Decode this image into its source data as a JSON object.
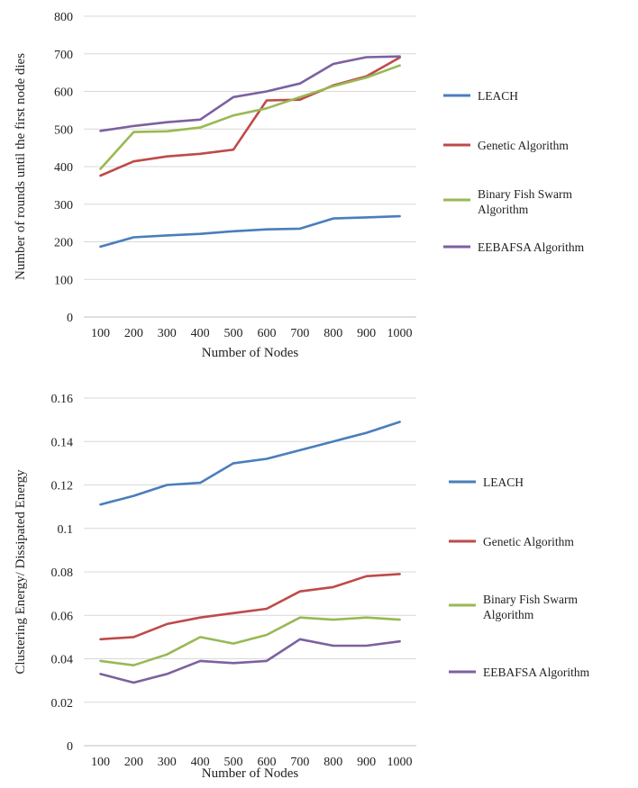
{
  "chart_data": [
    {
      "type": "line",
      "title": "",
      "xlabel": "Number of Nodes",
      "ylabel": "Number of rounds until the first node dies",
      "categories": [
        "100",
        "200",
        "300",
        "400",
        "500",
        "600",
        "700",
        "800",
        "900",
        "1000"
      ],
      "ylim": [
        0,
        800
      ],
      "yticks": [
        "0",
        "100",
        "200",
        "300",
        "400",
        "500",
        "600",
        "700",
        "800"
      ],
      "grid": true,
      "legend_position": "right",
      "series": [
        {
          "name": "LEACH",
          "color": "#4a7ebb",
          "values": [
            187,
            212,
            217,
            221,
            228,
            233,
            235,
            262,
            265,
            268
          ]
        },
        {
          "name": "Genetic Algorithm",
          "color": "#be4b48",
          "values": [
            376,
            414,
            427,
            434,
            445,
            576,
            578,
            616,
            640,
            690
          ]
        },
        {
          "name": "Binary Fish Swarm Algorithm",
          "color": "#98b954",
          "values": [
            394,
            492,
            494,
            504,
            536,
            555,
            585,
            614,
            637,
            669
          ]
        },
        {
          "name": "EEBAFSA Algorithm",
          "color": "#7d60a0",
          "values": [
            495,
            508,
            518,
            525,
            585,
            600,
            621,
            673,
            691,
            693
          ]
        }
      ]
    },
    {
      "type": "line",
      "title": "",
      "xlabel": "Number of Nodes",
      "ylabel": "Clustering Energy/ Dissipated Energy",
      "categories": [
        "100",
        "200",
        "300",
        "400",
        "500",
        "600",
        "700",
        "800",
        "900",
        "1000"
      ],
      "ylim": [
        0,
        0.16
      ],
      "yticks": [
        "0",
        "0.02",
        "0.04",
        "0.06",
        "0.08",
        "0.1",
        "0.12",
        "0.14",
        "0.16"
      ],
      "grid": true,
      "legend_position": "right",
      "series": [
        {
          "name": "LEACH",
          "color": "#4a7ebb",
          "values": [
            0.111,
            0.115,
            0.12,
            0.121,
            0.13,
            0.132,
            0.136,
            0.14,
            0.144,
            0.149
          ]
        },
        {
          "name": "Genetic Algorithm",
          "color": "#be4b48",
          "values": [
            0.049,
            0.05,
            0.056,
            0.059,
            0.061,
            0.063,
            0.071,
            0.073,
            0.078,
            0.079
          ]
        },
        {
          "name": "Binary Fish Swarm Algorithm",
          "color": "#98b954",
          "values": [
            0.039,
            0.037,
            0.042,
            0.05,
            0.047,
            0.051,
            0.059,
            0.058,
            0.059,
            0.058
          ]
        },
        {
          "name": "EEBAFSA Algorithm",
          "color": "#7d60a0",
          "values": [
            0.033,
            0.029,
            0.033,
            0.039,
            0.038,
            0.039,
            0.049,
            0.046,
            0.046,
            0.048
          ]
        }
      ]
    }
  ]
}
